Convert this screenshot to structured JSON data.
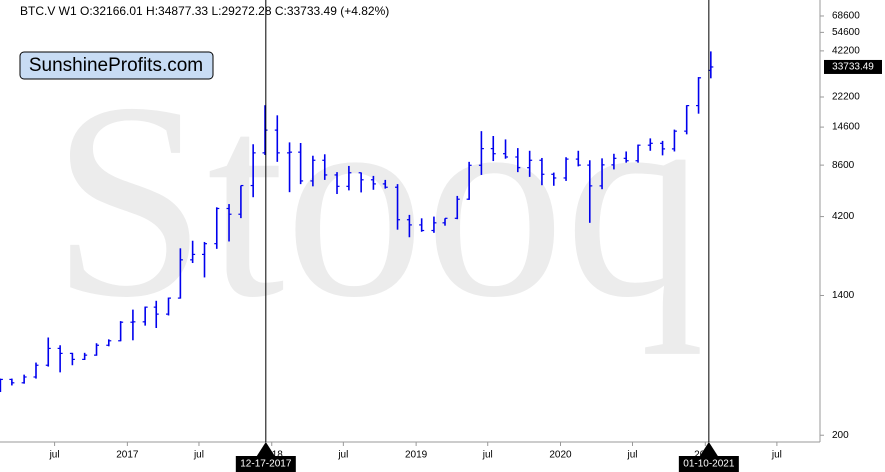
{
  "chart_data": {
    "type": "ohlc",
    "header": "BTC.V  W1  O:32166.01  H:34877.33  L:29272.28  C:33733.49  (+4.82%)",
    "logo": "SunshineProfits.com",
    "watermark": "Stooq",
    "log_scale": true,
    "color": "#0000ee",
    "ylim": [
      182,
      85700
    ],
    "yticks": [
      200,
      1400,
      4200,
      8600,
      14600,
      22200,
      42200,
      54600,
      68600
    ],
    "xlim": [
      "2016-02-14",
      "2021-10-18"
    ],
    "xticks": [
      {
        "value": "2016-07",
        "label": "jul"
      },
      {
        "value": "2017-01",
        "label": "2017"
      },
      {
        "value": "2017-07",
        "label": "jul"
      },
      {
        "value": "2018-01",
        "label": "2018"
      },
      {
        "value": "2018-07",
        "label": "jul"
      },
      {
        "value": "2019-01",
        "label": "2019"
      },
      {
        "value": "2019-07",
        "label": "jul"
      },
      {
        "value": "2020-01",
        "label": "2020"
      },
      {
        "value": "2020-07",
        "label": "jul"
      },
      {
        "value": "2021-01",
        "label": "2021"
      },
      {
        "value": "2021-07",
        "label": "jul"
      }
    ],
    "markers": [
      {
        "value": "2017-12-17",
        "label": "12-17-2017"
      },
      {
        "value": "2021-01-10",
        "label": "01-10-2021"
      }
    ],
    "x": [
      "2016-02",
      "2016-03",
      "2016-04",
      "2016-05",
      "2016-06",
      "2016-07",
      "2016-08",
      "2016-09",
      "2016-10",
      "2016-11",
      "2016-12",
      "2017-01",
      "2017-02",
      "2017-03",
      "2017-04",
      "2017-05",
      "2017-06",
      "2017-07",
      "2017-08",
      "2017-09",
      "2017-10",
      "2017-11",
      "2017-12",
      "2018-01",
      "2018-02",
      "2018-03",
      "2018-04",
      "2018-05",
      "2018-06",
      "2018-07",
      "2018-08",
      "2018-09",
      "2018-10",
      "2018-11",
      "2018-12",
      "2019-01",
      "2019-02",
      "2019-03",
      "2019-04",
      "2019-05",
      "2019-06",
      "2019-07",
      "2019-08",
      "2019-09",
      "2019-10",
      "2019-11",
      "2019-12",
      "2020-01",
      "2020-02",
      "2020-03",
      "2020-04",
      "2020-05",
      "2020-06",
      "2020-07",
      "2020-08",
      "2020-09",
      "2020-10",
      "2020-11",
      "2020-12",
      "2021-01"
    ],
    "open": [
      370,
      435,
      415,
      450,
      530,
      670,
      625,
      575,
      610,
      700,
      745,
      965,
      970,
      1190,
      1080,
      1350,
      2300,
      2480,
      2880,
      4700,
      4340,
      6470,
      10200,
      14000,
      10200,
      10300,
      6900,
      9200,
      7500,
      6400,
      7730,
      7010,
      6620,
      6320,
      4020,
      3740,
      3460,
      3850,
      4100,
      5350,
      8580,
      10820,
      10080,
      9630,
      8300,
      9200,
      7570,
      7190,
      9350,
      8600,
      6440,
      8630,
      9450,
      9140,
      11350,
      11650,
      10780,
      13800,
      19700,
      32166.01
    ],
    "high": [
      440,
      440,
      465,
      550,
      780,
      700,
      630,
      630,
      720,
      760,
      980,
      1150,
      1200,
      1300,
      1360,
      2700,
      3000,
      2950,
      4780,
      5000,
      6470,
      11500,
      19800,
      17200,
      11800,
      11700,
      9800,
      10000,
      7800,
      8500,
      7760,
      7400,
      7000,
      6600,
      4300,
      4100,
      4200,
      4100,
      5600,
      9000,
      13800,
      12900,
      12300,
      10900,
      10500,
      9500,
      7750,
      9600,
      10500,
      9200,
      9450,
      10070,
      10400,
      11450,
      12480,
      12050,
      14100,
      19800,
      29300,
      41900
    ],
    "low": [
      365,
      400,
      410,
      440,
      520,
      480,
      530,
      570,
      605,
      690,
      740,
      750,
      920,
      890,
      1060,
      1340,
      2200,
      1800,
      2680,
      2970,
      4110,
      5500,
      9900,
      9000,
      5900,
      6600,
      6400,
      7000,
      5750,
      6050,
      5880,
      6100,
      6200,
      3500,
      3150,
      3400,
      3350,
      3700,
      4050,
      5300,
      7500,
      9100,
      9400,
      7800,
      7300,
      6500,
      6450,
      6900,
      8450,
      3850,
      6150,
      8100,
      8900,
      8900,
      10500,
      9850,
      10400,
      13200,
      17600,
      28800
    ],
    "close": [
      435,
      415,
      450,
      530,
      670,
      625,
      575,
      610,
      700,
      745,
      965,
      970,
      1190,
      1080,
      1350,
      2300,
      2480,
      2880,
      4700,
      4340,
      6470,
      10200,
      14000,
      10200,
      10300,
      6900,
      9200,
      7500,
      6400,
      7730,
      7010,
      6620,
      6320,
      4020,
      3740,
      3460,
      3850,
      4100,
      5350,
      8580,
      10820,
      10080,
      9630,
      8300,
      9200,
      7570,
      7190,
      9350,
      8600,
      6440,
      8630,
      9450,
      9140,
      11350,
      11650,
      10780,
      13800,
      19700,
      29000,
      33733.49
    ]
  }
}
